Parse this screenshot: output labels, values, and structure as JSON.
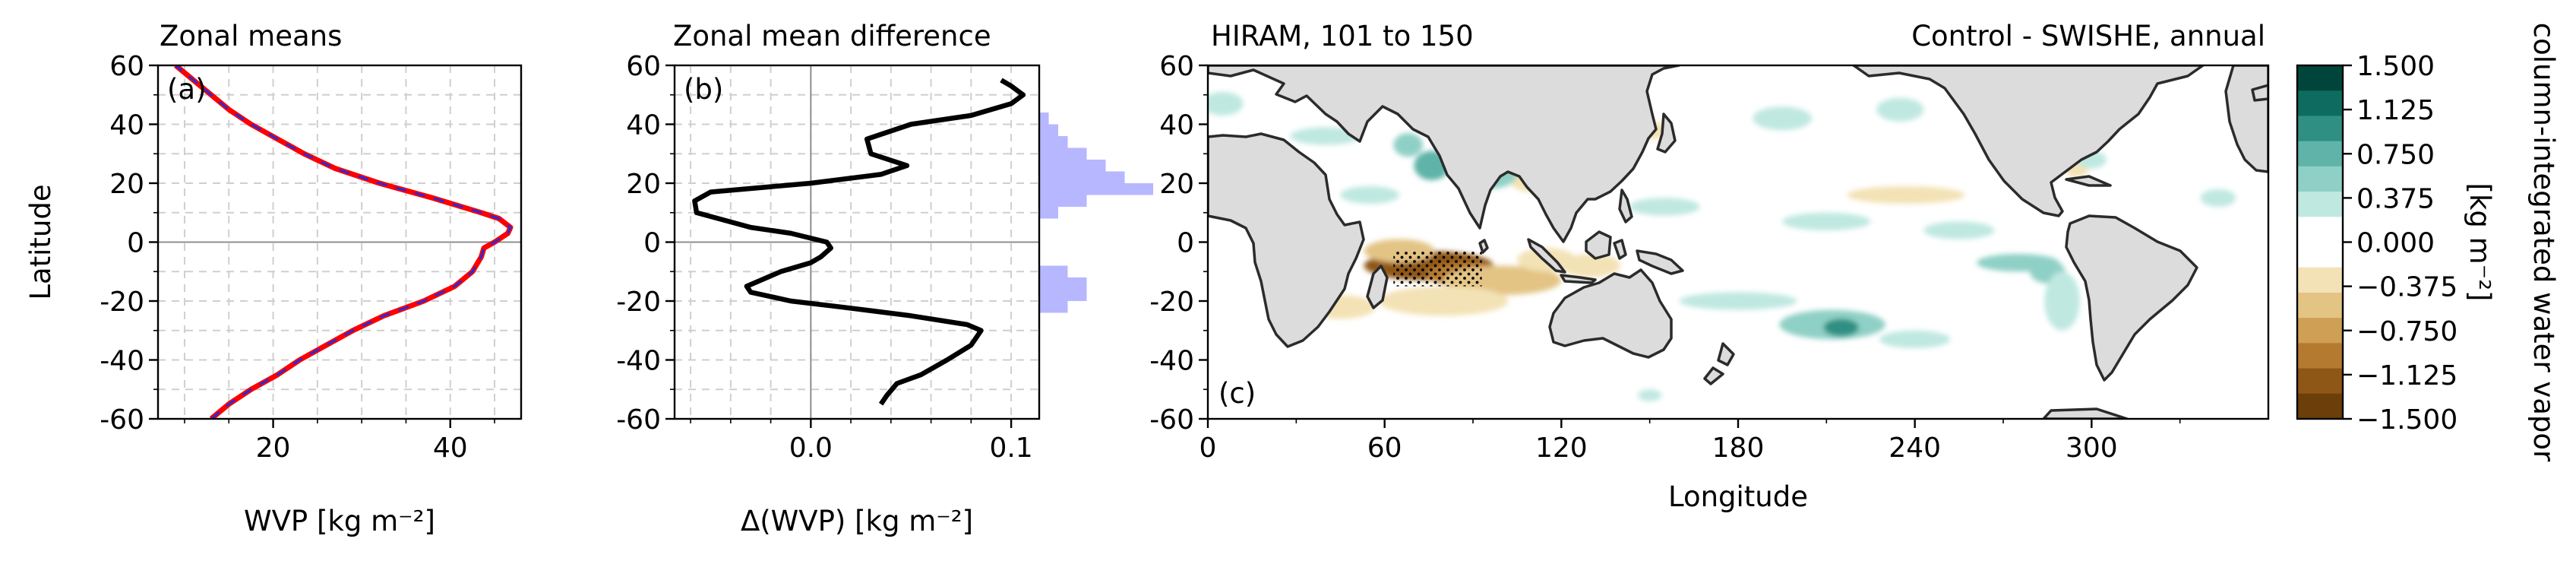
{
  "colors": {
    "zonal_control": "#ff0000",
    "zonal_swishe": "#2b2bd6",
    "difference_line": "#000000",
    "histogram": "#aaaaff",
    "land": "#dcdcdc"
  },
  "chart_data": [
    {
      "id": "a",
      "type": "line",
      "title": "Zonal means",
      "panel_label": "(a)",
      "xlabel": "WVP [kg m⁻²]",
      "ylabel": "Latitude",
      "xlim": [
        7,
        48
      ],
      "ylim": [
        -60,
        60
      ],
      "xticks": [
        20,
        40
      ],
      "yticks": [
        -60,
        -40,
        -20,
        0,
        20,
        40,
        60
      ],
      "grid": true,
      "series": [
        {
          "style": "solid-red",
          "lat": [
            -60,
            -55,
            -50,
            -45,
            -40,
            -35,
            -30,
            -25,
            -20,
            -15,
            -10,
            -5,
            -2,
            0,
            3,
            5,
            8,
            10,
            15,
            20,
            25,
            30,
            35,
            40,
            45,
            50,
            55,
            60
          ],
          "wvp": [
            13,
            15,
            17.5,
            20.5,
            23,
            26,
            29,
            32.5,
            37,
            40.5,
            42.5,
            43.5,
            43.8,
            45,
            46.5,
            46.8,
            45.5,
            43.5,
            38,
            32,
            27,
            23.5,
            20.5,
            17.5,
            15,
            13,
            11,
            9
          ]
        },
        {
          "style": "dashed-blue",
          "lat": [
            -60,
            -55,
            -50,
            -45,
            -40,
            -35,
            -30,
            -25,
            -20,
            -15,
            -10,
            -5,
            -2,
            0,
            3,
            5,
            8,
            10,
            15,
            20,
            25,
            30,
            35,
            40,
            45,
            50,
            55,
            60
          ],
          "wvp": [
            13,
            15,
            17.5,
            20.5,
            23,
            26,
            29,
            32.5,
            37,
            40.5,
            42.5,
            43.5,
            43.8,
            45,
            46.5,
            46.8,
            45.5,
            43.5,
            38,
            32,
            27,
            23.5,
            20.5,
            17.5,
            15,
            13,
            11,
            9
          ]
        }
      ]
    },
    {
      "id": "b",
      "type": "line",
      "title": "Zonal mean difference",
      "panel_label": "(b)",
      "xlabel": "Δ(WVP) [kg m⁻²]",
      "ylabel": "",
      "xlim": [
        -0.068,
        0.114
      ],
      "ylim": [
        -60,
        60
      ],
      "xticks": [
        "0.0",
        "0.1"
      ],
      "yticks": [
        -60,
        -40,
        -20,
        0,
        20,
        40,
        60
      ],
      "grid": true,
      "series": [
        {
          "lat": [
            -55,
            -52,
            -48,
            -45,
            -40,
            -35,
            -30,
            -28,
            -25,
            -22,
            -20,
            -17,
            -15,
            -10,
            -7,
            -5,
            -2,
            0,
            3,
            5,
            10,
            14,
            17,
            20,
            23,
            26,
            30,
            35,
            40,
            43,
            47,
            50,
            53,
            55
          ],
          "diff": [
            0.035,
            0.038,
            0.043,
            0.055,
            0.068,
            0.08,
            0.085,
            0.078,
            0.05,
            0.015,
            -0.01,
            -0.03,
            -0.032,
            -0.015,
            0.0,
            0.005,
            0.01,
            0.008,
            -0.01,
            -0.03,
            -0.057,
            -0.058,
            -0.05,
            0.0,
            0.035,
            0.048,
            0.03,
            0.028,
            0.05,
            0.08,
            0.1,
            0.106,
            0.1,
            0.095
          ]
        }
      ],
      "histogram": {
        "bins_lat": [
          -36,
          -32,
          -28,
          -24,
          -20,
          -16,
          -12,
          -8,
          -4,
          0,
          4,
          8,
          12,
          16,
          20,
          24,
          28,
          32,
          36,
          40,
          44
        ],
        "counts": [
          0,
          0,
          0,
          3,
          5,
          5,
          3,
          0,
          0,
          0,
          0,
          2,
          5,
          12,
          9,
          7,
          5,
          3,
          2,
          1,
          0
        ]
      }
    },
    {
      "id": "c",
      "type": "heatmap",
      "title_left": "HIRAM, 101 to 150",
      "title_right": "Control - SWISHE, annual",
      "panel_label": "(c)",
      "xlabel": "Longitude",
      "xlim": [
        0,
        360
      ],
      "ylim": [
        -60,
        60
      ],
      "xticks": [
        0,
        60,
        120,
        180,
        240,
        300
      ],
      "yticks": [
        -60,
        -40,
        -20,
        0,
        20,
        40,
        60
      ],
      "colorbar": {
        "label": "column-integrated water vapor",
        "units": "[kg m⁻²]",
        "ticks": [
          "1.500",
          "1.125",
          "0.750",
          "0.375",
          "0.000",
          "−0.375",
          "−0.750",
          "−1.125",
          "−1.500"
        ],
        "colors_top_to_bottom": [
          "#00453b",
          "#0e6b60",
          "#2f8f83",
          "#5fb3a8",
          "#8fd0c6",
          "#bfe8e1",
          "#ffffff",
          "#ffffff",
          "#f3e2b5",
          "#e3c485",
          "#cf9f55",
          "#b47a30",
          "#8f5715",
          "#6b3e0a"
        ]
      },
      "anomalies": [
        {
          "lon": 75,
          "lat": -8,
          "rx": 22,
          "ry": 5,
          "value": -1.2
        },
        {
          "lon": 88,
          "lat": -11,
          "rx": 14,
          "ry": 4,
          "value": -0.9
        },
        {
          "lon": 65,
          "lat": -3,
          "rx": 12,
          "ry": 4,
          "value": -0.6
        },
        {
          "lon": 100,
          "lat": -13,
          "rx": 20,
          "ry": 5,
          "value": -0.45
        },
        {
          "lon": 80,
          "lat": -20,
          "rx": 22,
          "ry": 5,
          "value": -0.35
        },
        {
          "lon": 115,
          "lat": -6,
          "rx": 10,
          "ry": 4,
          "value": -0.4
        },
        {
          "lon": 130,
          "lat": -8,
          "rx": 10,
          "ry": 4,
          "value": -0.3
        },
        {
          "lon": 110,
          "lat": 22,
          "rx": 8,
          "ry": 5,
          "value": -0.35
        },
        {
          "lon": 125,
          "lat": 33,
          "rx": 5,
          "ry": 5,
          "value": -0.5
        },
        {
          "lon": 32,
          "lat": -11,
          "rx": 12,
          "ry": 4,
          "value": -0.3
        },
        {
          "lon": 45,
          "lat": -22,
          "rx": 12,
          "ry": 4,
          "value": -0.25
        },
        {
          "lon": 295,
          "lat": 25,
          "rx": 4,
          "ry": 3,
          "value": -0.3
        },
        {
          "lon": 237,
          "lat": 16,
          "rx": 20,
          "ry": 3,
          "value": -0.25
        },
        {
          "lon": 150,
          "lat": 38,
          "rx": 7,
          "ry": 3,
          "value": -0.25
        },
        {
          "lon": 15,
          "lat": 13,
          "rx": 6,
          "ry": 3,
          "value": -0.3
        },
        {
          "lon": 68,
          "lat": 33,
          "rx": 5,
          "ry": 4,
          "value": 0.45
        },
        {
          "lon": 76,
          "lat": 26,
          "rx": 6,
          "ry": 5,
          "value": 0.7
        },
        {
          "lon": 95,
          "lat": 23,
          "rx": 10,
          "ry": 5,
          "value": 0.55
        },
        {
          "lon": 55,
          "lat": 16,
          "rx": 10,
          "ry": 3,
          "value": 0.35
        },
        {
          "lon": 40,
          "lat": 36,
          "rx": 12,
          "ry": 3,
          "value": 0.3
        },
        {
          "lon": 5,
          "lat": 47,
          "rx": 7,
          "ry": 4,
          "value": 0.3
        },
        {
          "lon": 155,
          "lat": 12,
          "rx": 12,
          "ry": 3,
          "value": 0.3
        },
        {
          "lon": 195,
          "lat": 42,
          "rx": 10,
          "ry": 4,
          "value": 0.3
        },
        {
          "lon": 235,
          "lat": 45,
          "rx": 8,
          "ry": 4,
          "value": 0.3
        },
        {
          "lon": 210,
          "lat": 7,
          "rx": 15,
          "ry": 3,
          "value": 0.35
        },
        {
          "lon": 255,
          "lat": 4,
          "rx": 12,
          "ry": 3,
          "value": 0.3
        },
        {
          "lon": 275,
          "lat": -7,
          "rx": 14,
          "ry": 3,
          "value": 0.6
        },
        {
          "lon": 285,
          "lat": -10,
          "rx": 6,
          "ry": 4,
          "value": 0.45
        },
        {
          "lon": 212,
          "lat": -28,
          "rx": 18,
          "ry": 5,
          "value": 0.5
        },
        {
          "lon": 215,
          "lat": -29,
          "rx": 6,
          "ry": 3,
          "value": 0.9
        },
        {
          "lon": 180,
          "lat": -20,
          "rx": 20,
          "ry": 3,
          "value": 0.3
        },
        {
          "lon": 240,
          "lat": -33,
          "rx": 12,
          "ry": 3,
          "value": 0.3
        },
        {
          "lon": 150,
          "lat": -52,
          "rx": 4,
          "ry": 2,
          "value": 0.3
        },
        {
          "lon": 290,
          "lat": -20,
          "rx": 6,
          "ry": 10,
          "value": 0.3
        },
        {
          "lon": 300,
          "lat": 28,
          "rx": 5,
          "ry": 3,
          "value": 0.25
        },
        {
          "lon": 343,
          "lat": 15,
          "rx": 6,
          "ry": 3,
          "value": 0.3
        },
        {
          "lon": 320,
          "lat": -12,
          "rx": 5,
          "ry": 5,
          "value": 0.3
        }
      ],
      "stippling_region": {
        "lon": [
          63,
          93
        ],
        "lat": [
          -15,
          -3
        ]
      }
    }
  ]
}
